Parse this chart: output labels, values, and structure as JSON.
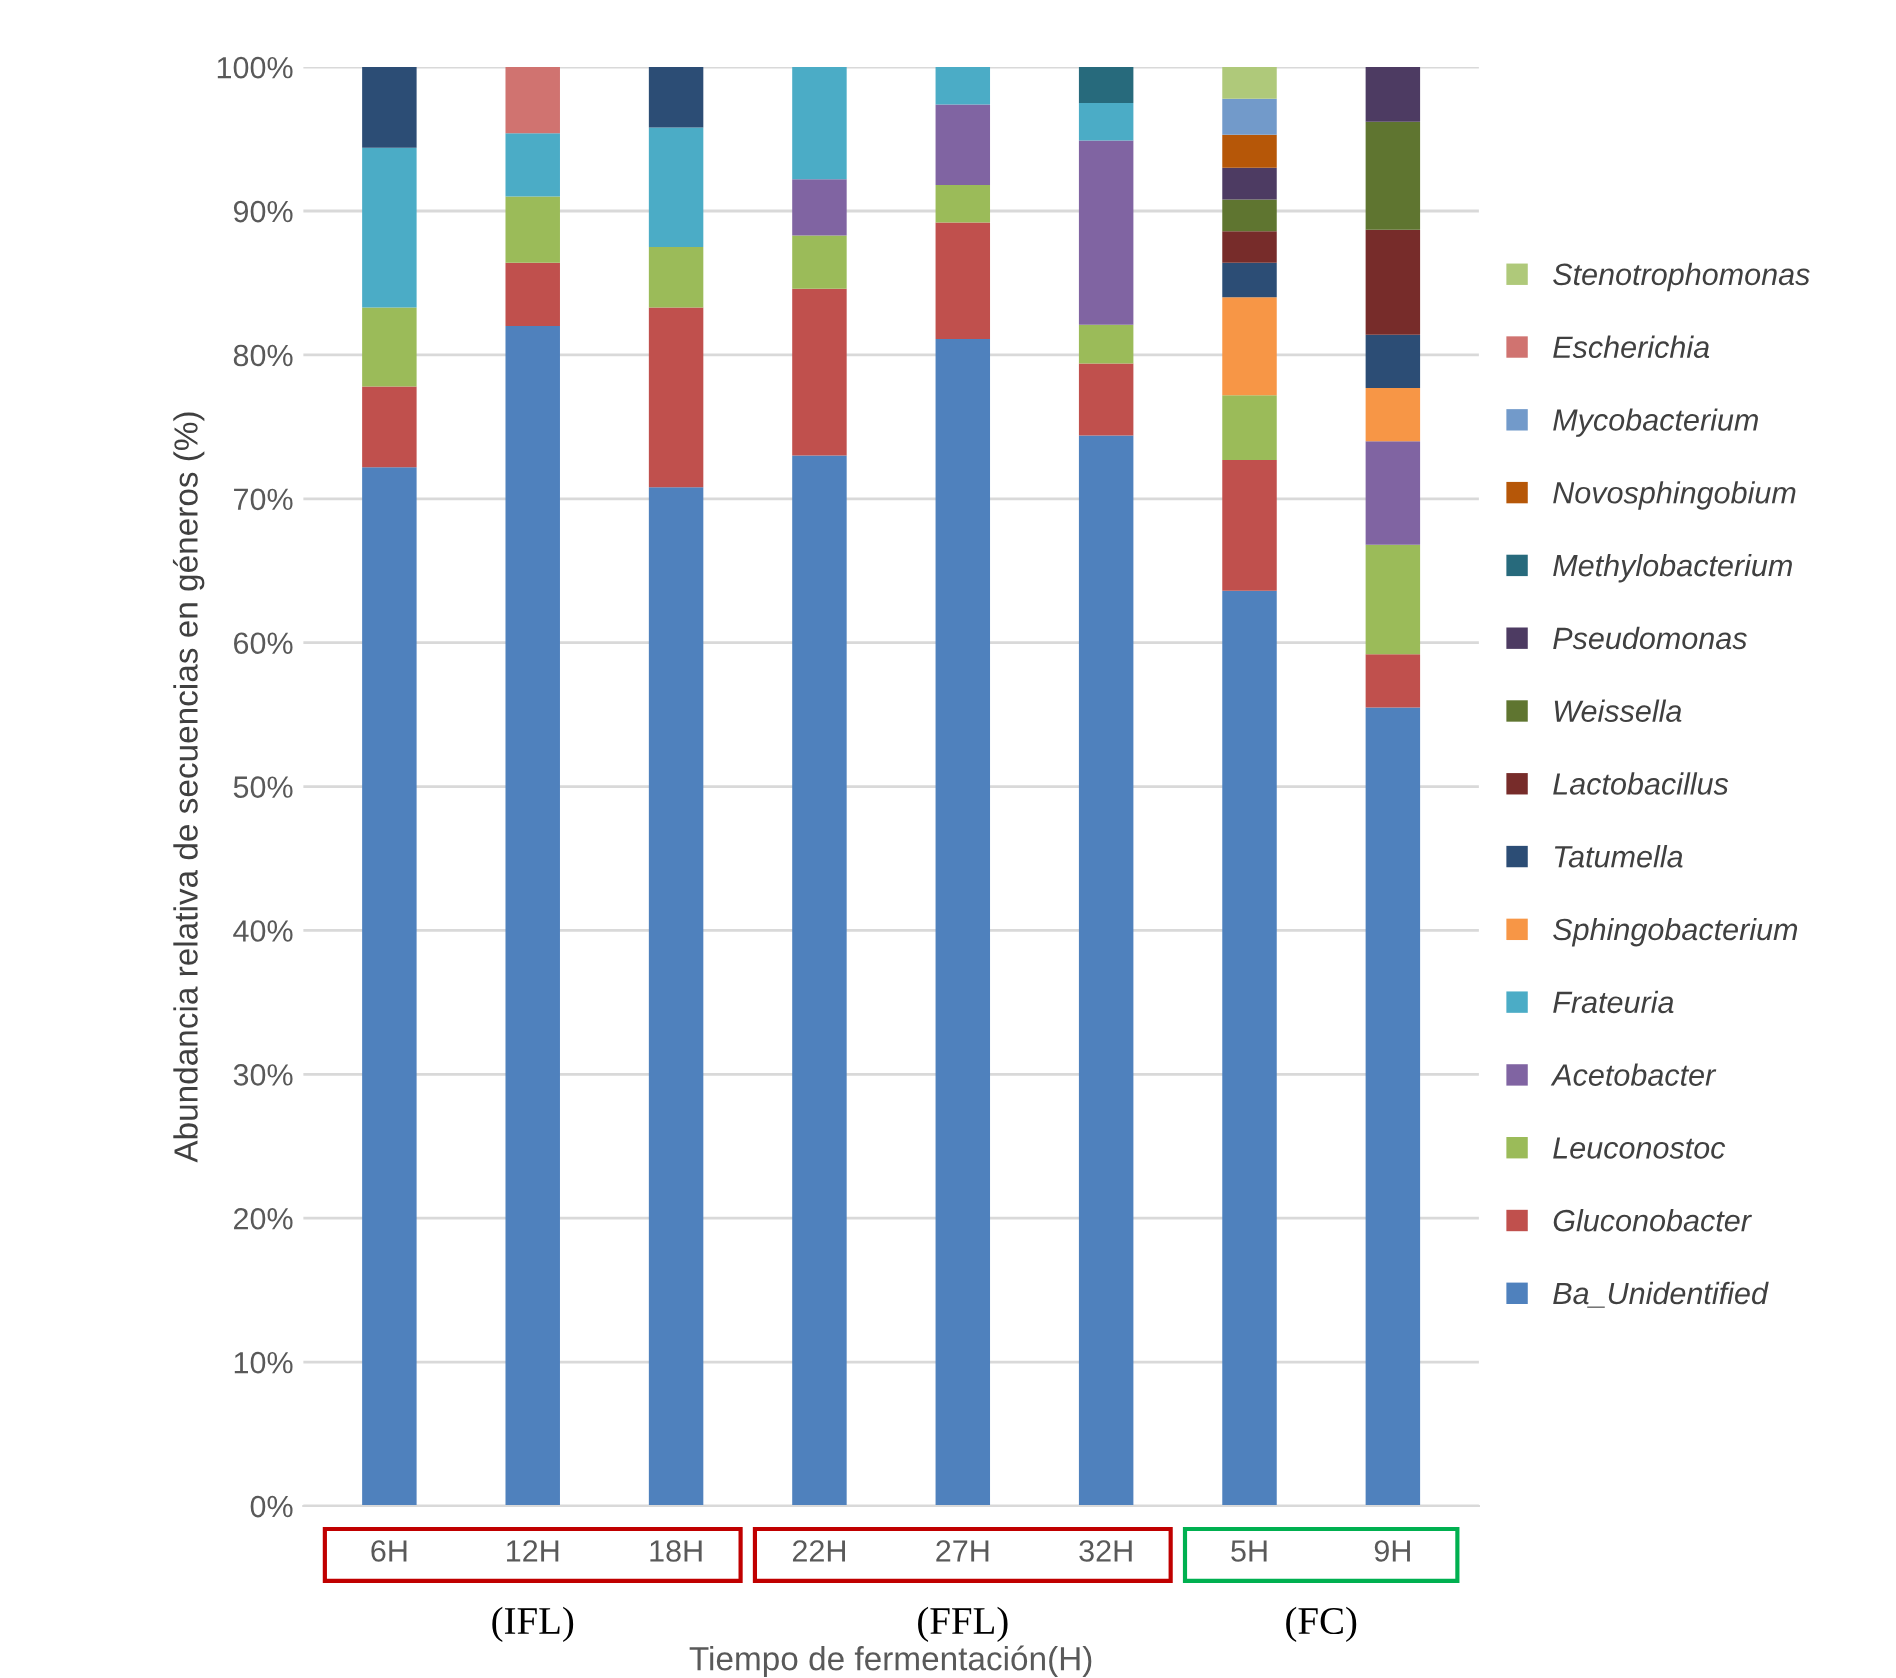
{
  "chart_data": {
    "type": "bar",
    "stacked": true,
    "categories": [
      "6H",
      "12H",
      "18H",
      "22H",
      "27H",
      "32H",
      "5H",
      "9H"
    ],
    "xlabel": "Tiempo de fermentación(H)",
    "ylabel": "Abundancia relativa de secuencias en géneros (%)",
    "annotations": [
      "(IFL)",
      "(FFL)",
      "(FC)"
    ],
    "ylim": [
      0,
      100
    ],
    "yticks": [
      {
        "value": 0,
        "label": "0%"
      },
      {
        "value": 10,
        "label": "10%"
      },
      {
        "value": 20,
        "label": "20%"
      },
      {
        "value": 30,
        "label": "30%"
      },
      {
        "value": 40,
        "label": "40%"
      },
      {
        "value": 50,
        "label": "50%"
      },
      {
        "value": 60,
        "label": "60%"
      },
      {
        "value": 70,
        "label": "70%"
      },
      {
        "value": 80,
        "label": "80%"
      },
      {
        "value": 90,
        "label": "90%"
      },
      {
        "value": 100,
        "label": "100%"
      }
    ],
    "grid": "y",
    "legend": "right",
    "series": [
      {
        "name": "Ba_Unidentified",
        "color": "#4f81bd",
        "values": [
          72.2,
          82,
          70.8,
          73,
          81.1,
          74.4,
          63.6,
          55.5
        ]
      },
      {
        "name": "Gluconobacter",
        "color": "#c0504d",
        "values": [
          5.6,
          4.4,
          12.5,
          11.6,
          8.1,
          5.0,
          9.1,
          3.7
        ]
      },
      {
        "name": "Leuconostoc",
        "color": "#9bbb59",
        "values": [
          5.5,
          4.6,
          4.2,
          3.7,
          2.6,
          2.7,
          4.5,
          7.6
        ]
      },
      {
        "name": "Acetobacter",
        "color": "#8064a2",
        "values": [
          null,
          null,
          null,
          3.9,
          5.6,
          12.8,
          null,
          7.2
        ]
      },
      {
        "name": "Frateuria",
        "color": "#4bacc6",
        "values": [
          11.1,
          4.4,
          8.3,
          7.8,
          2.6,
          2.6,
          null,
          null
        ]
      },
      {
        "name": "Sphingobacterium",
        "color": "#f79646",
        "values": [
          null,
          null,
          null,
          null,
          null,
          null,
          6.8,
          3.7
        ]
      },
      {
        "name": "Tatumella",
        "color": "#2c4d75",
        "values": [
          5.6,
          null,
          4.2,
          null,
          null,
          null,
          2.4,
          3.7
        ]
      },
      {
        "name": "Lactobacillus",
        "color": "#772c2a",
        "values": [
          null,
          null,
          null,
          null,
          null,
          null,
          2.2,
          7.3
        ]
      },
      {
        "name": "Weissella",
        "color": "#5f7530",
        "values": [
          null,
          null,
          null,
          null,
          null,
          null,
          2.2,
          7.5
        ]
      },
      {
        "name": "Pseudomonas",
        "color": "#4d3b62",
        "values": [
          null,
          null,
          null,
          null,
          null,
          null,
          2.2,
          3.8
        ]
      },
      {
        "name": "Methylobacterium",
        "color": "#276a7c",
        "values": [
          null,
          null,
          null,
          null,
          null,
          2.5,
          null,
          null
        ]
      },
      {
        "name": "Novosphingobium",
        "color": "#b65708",
        "values": [
          null,
          null,
          null,
          null,
          null,
          null,
          2.3,
          null
        ]
      },
      {
        "name": "Mycobacterium",
        "color": "#729aca",
        "values": [
          null,
          null,
          null,
          null,
          null,
          null,
          2.5,
          null
        ]
      },
      {
        "name": "Escherichia",
        "color": "#d07370",
        "values": [
          null,
          4.6,
          null,
          null,
          null,
          null,
          null,
          null
        ]
      },
      {
        "name": "Stenotrophomonas",
        "color": "#afc97a",
        "values": [
          null,
          null,
          null,
          null,
          null,
          null,
          2.2,
          null
        ]
      }
    ]
  }
}
